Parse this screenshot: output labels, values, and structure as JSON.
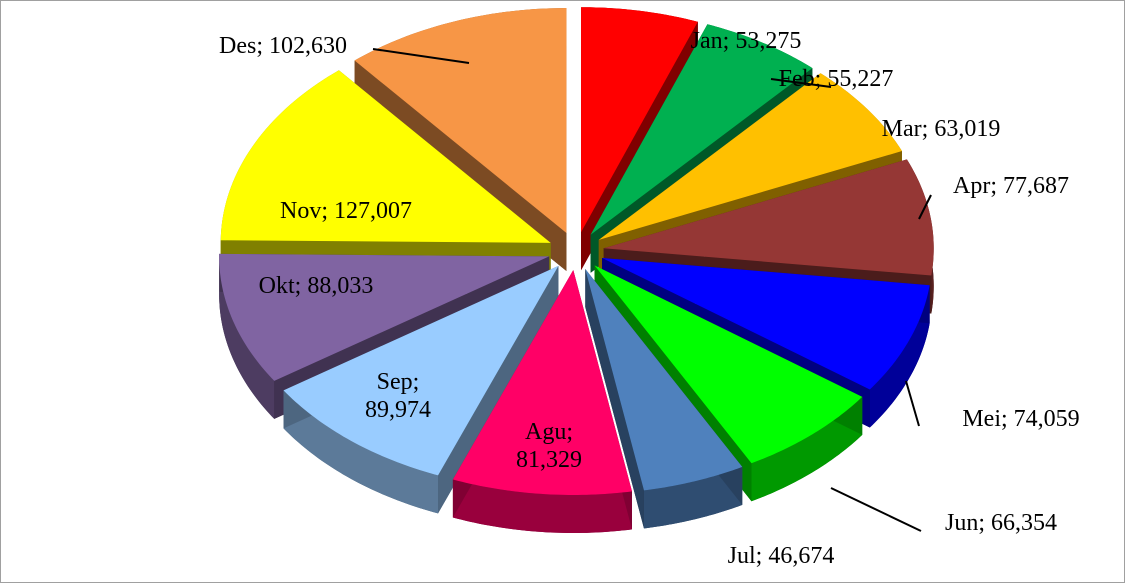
{
  "chart_data": {
    "type": "pie",
    "values": [
      53275,
      55227,
      63019,
      77687,
      74059,
      66354,
      46674,
      81329,
      89974,
      88033,
      127007,
      102630
    ],
    "value_labels": [
      "Jan; 53,275",
      "Feb; 55,227",
      "Mar; 63,019",
      "Apr; 77,687",
      "Mei; 74,059",
      "Jun; 66,354",
      "Jul; 46,674",
      "Agu; 81,329",
      "Sep; 89,974",
      "Okt; 88,033",
      "Nov; 127,007",
      "Des; 102,630"
    ],
    "colors": [
      "#ff0000",
      "#00b050",
      "#ffc000",
      "#953735",
      "#0000ff",
      "#00ff00",
      "#4f81bd",
      "#ff0066",
      "#99ccff",
      "#8064a2",
      "#ffff00",
      "#f79646"
    ]
  }
}
